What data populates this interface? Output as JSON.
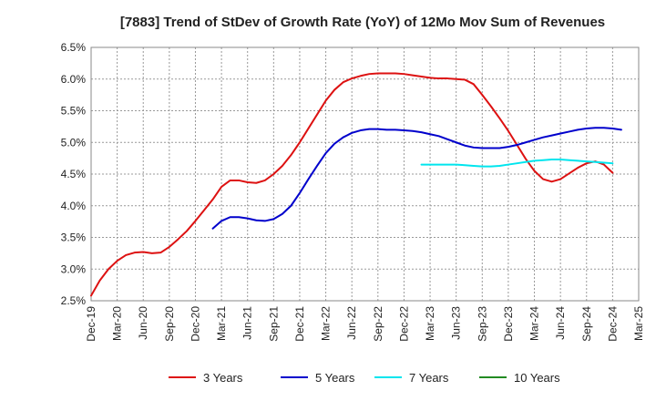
{
  "chart_data": {
    "type": "line",
    "title": "[7883]  Trend of StDev of Growth Rate (YoY) of 12Mo Mov Sum of Revenues",
    "xlabel": "",
    "ylabel": "",
    "grid": true,
    "legend_position": "bottom",
    "ylim": [
      2.5,
      6.5
    ],
    "y_ticks": [
      {
        "value": 2.5,
        "label": "2.5%"
      },
      {
        "value": 3.0,
        "label": "3.0%"
      },
      {
        "value": 3.5,
        "label": "3.5%"
      },
      {
        "value": 4.0,
        "label": "4.0%"
      },
      {
        "value": 4.5,
        "label": "4.5%"
      },
      {
        "value": 5.0,
        "label": "5.0%"
      },
      {
        "value": 5.5,
        "label": "5.5%"
      },
      {
        "value": 6.0,
        "label": "6.0%"
      },
      {
        "value": 6.5,
        "label": "6.5%"
      }
    ],
    "x_index_range": [
      0,
      63
    ],
    "x_ticks": [
      {
        "index": 0,
        "label": "Dec-19"
      },
      {
        "index": 3,
        "label": "Mar-20"
      },
      {
        "index": 6,
        "label": "Jun-20"
      },
      {
        "index": 9,
        "label": "Sep-20"
      },
      {
        "index": 12,
        "label": "Dec-20"
      },
      {
        "index": 15,
        "label": "Mar-21"
      },
      {
        "index": 18,
        "label": "Jun-21"
      },
      {
        "index": 21,
        "label": "Sep-21"
      },
      {
        "index": 24,
        "label": "Dec-21"
      },
      {
        "index": 27,
        "label": "Mar-22"
      },
      {
        "index": 30,
        "label": "Jun-22"
      },
      {
        "index": 33,
        "label": "Sep-22"
      },
      {
        "index": 36,
        "label": "Dec-22"
      },
      {
        "index": 39,
        "label": "Mar-23"
      },
      {
        "index": 42,
        "label": "Jun-23"
      },
      {
        "index": 45,
        "label": "Sep-23"
      },
      {
        "index": 48,
        "label": "Dec-23"
      },
      {
        "index": 51,
        "label": "Mar-24"
      },
      {
        "index": 54,
        "label": "Jun-24"
      },
      {
        "index": 57,
        "label": "Sep-24"
      },
      {
        "index": 60,
        "label": "Dec-24"
      },
      {
        "index": 63,
        "label": "Mar-25"
      }
    ],
    "series": [
      {
        "name": "3 Years",
        "color": "#dd1111",
        "start_index": 0,
        "values": [
          2.58,
          2.82,
          3.0,
          3.13,
          3.22,
          3.26,
          3.27,
          3.25,
          3.26,
          3.35,
          3.47,
          3.6,
          3.76,
          3.93,
          4.1,
          4.3,
          4.4,
          4.4,
          4.37,
          4.36,
          4.4,
          4.5,
          4.63,
          4.8,
          5.0,
          5.22,
          5.44,
          5.66,
          5.83,
          5.95,
          6.01,
          6.05,
          6.08,
          6.09,
          6.09,
          6.09,
          6.08,
          6.06,
          6.04,
          6.02,
          6.01,
          6.01,
          6.0,
          5.99,
          5.92,
          5.75,
          5.57,
          5.38,
          5.18,
          4.96,
          4.74,
          4.55,
          4.42,
          4.38,
          4.42,
          4.51,
          4.6,
          4.67,
          4.7,
          4.65,
          4.52
        ]
      },
      {
        "name": "5 Years",
        "color": "#0000cc",
        "start_index": 14,
        "values": [
          3.64,
          3.76,
          3.82,
          3.82,
          3.8,
          3.77,
          3.76,
          3.79,
          3.87,
          4.0,
          4.2,
          4.42,
          4.63,
          4.83,
          4.98,
          5.08,
          5.15,
          5.19,
          5.21,
          5.21,
          5.2,
          5.2,
          5.19,
          5.18,
          5.16,
          5.13,
          5.1,
          5.05,
          5.0,
          4.95,
          4.92,
          4.91,
          4.91,
          4.91,
          4.93,
          4.96,
          5.0,
          5.04,
          5.08,
          5.11,
          5.14,
          5.17,
          5.2,
          5.22,
          5.23,
          5.23,
          5.22,
          5.2
        ]
      },
      {
        "name": "7 Years",
        "color": "#00e5ee",
        "start_index": 38,
        "values": [
          4.65,
          4.65,
          4.65,
          4.65,
          4.65,
          4.64,
          4.63,
          4.62,
          4.62,
          4.63,
          4.65,
          4.67,
          4.69,
          4.71,
          4.72,
          4.73,
          4.73,
          4.72,
          4.71,
          4.7,
          4.69,
          4.68,
          4.67
        ]
      },
      {
        "name": "10 Years",
        "color": "#228b22",
        "start_index": 60,
        "values": []
      }
    ]
  }
}
